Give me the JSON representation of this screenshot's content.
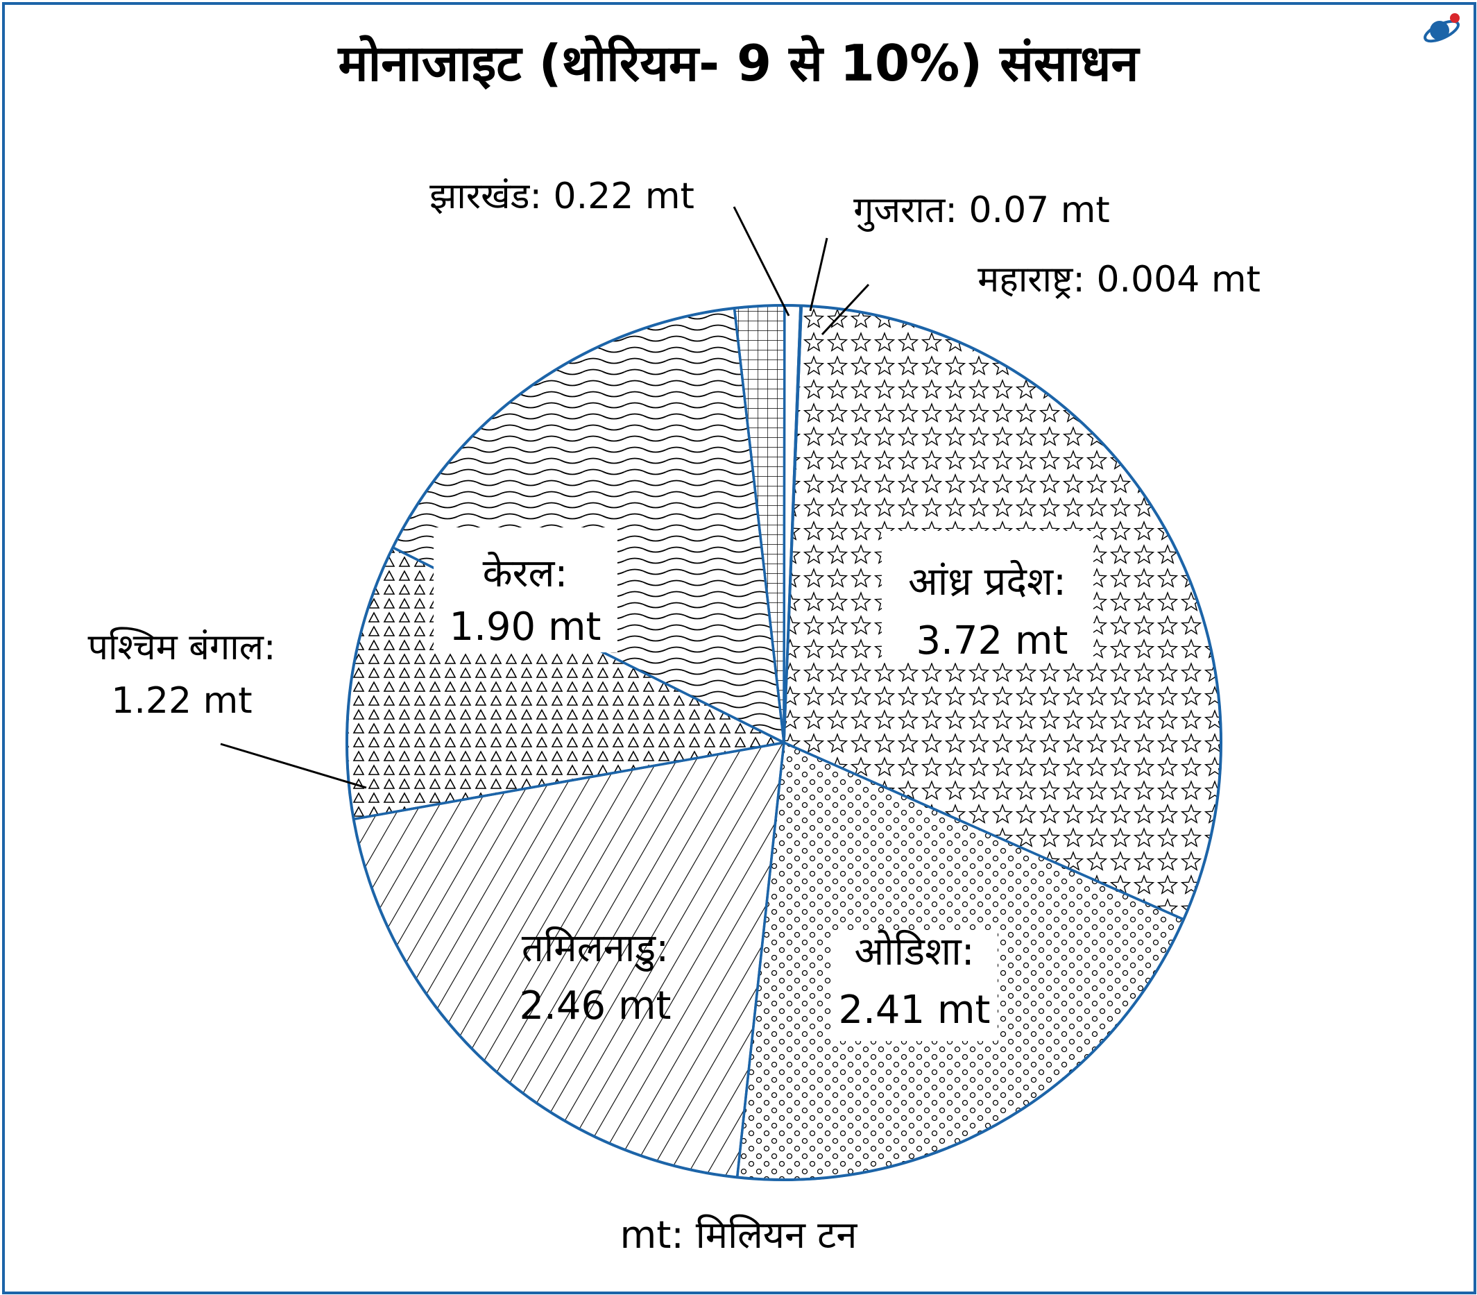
{
  "title": "मोनाजाइट (थोरियम- 9 से 10%) संसाधन",
  "footnote": "mt: मिलियन टन",
  "colors": {
    "border": "#1c64a8",
    "ink": "#000000",
    "accent_red": "#d9262c"
  },
  "chart_data": {
    "type": "pie",
    "title": "मोनाजाइट (थोरियम- 9 से 10%) संसाधन",
    "unit": "mt",
    "slices": [
      {
        "state": "आंध्र प्रदेश:",
        "value": 3.72,
        "value_label": "3.72 mt",
        "pattern": "stars"
      },
      {
        "state": "ओडिशा:",
        "value": 2.41,
        "value_label": "2.41 mt",
        "pattern": "circles"
      },
      {
        "state": "तमिलनाडु:",
        "value": 2.46,
        "value_label": "2.46 mt",
        "pattern": "diagonal"
      },
      {
        "state": "पश्चिम बंगाल:",
        "value": 1.22,
        "value_label": "1.22 mt",
        "pattern": "triangles"
      },
      {
        "state": "केरल:",
        "value": 1.9,
        "value_label": "1.90 mt",
        "pattern": "waves"
      },
      {
        "state": "झारखंड:",
        "value": 0.22,
        "value_label": "0.22 mt",
        "pattern": "crosshatch"
      },
      {
        "state": "गुजरात:",
        "value": 0.07,
        "value_label": "0.07 mt",
        "pattern": "none"
      },
      {
        "state": "महाराष्ट्र:",
        "value": 0.004,
        "value_label": "0.004 mt",
        "pattern": "none"
      }
    ]
  }
}
